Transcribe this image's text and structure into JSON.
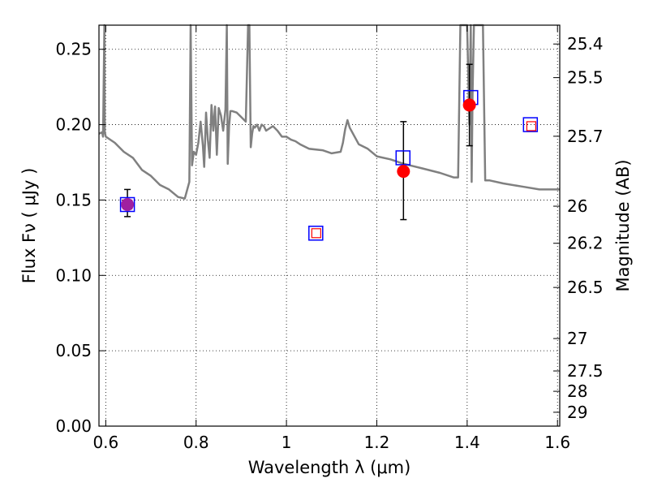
{
  "chart_data": {
    "type": "scatter",
    "xlabel": "Wavelength  λ (μm)",
    "ylabel": "Flux  Fν  ( μJy )",
    "y2label": "Magnitude (AB)",
    "xlim": [
      0.585,
      1.605
    ],
    "ylim": [
      0.0,
      0.266
    ],
    "grid": true,
    "x_ticks": [
      0.6,
      0.8,
      1.0,
      1.2,
      1.4,
      1.6
    ],
    "x_tick_labels": [
      "0.6",
      "0.8",
      "1",
      "1.2",
      "1.4",
      "1.6"
    ],
    "y_ticks": [
      0.0,
      0.05,
      0.1,
      0.15,
      0.2,
      0.25
    ],
    "y_tick_labels": [
      "0.00",
      "0.05",
      "0.10",
      "0.15",
      "0.20",
      "0.25"
    ],
    "y2_ticks": [
      {
        "mag": "25.4",
        "flux": 0.2535
      },
      {
        "mag": "25.5",
        "flux": 0.2312
      },
      {
        "mag": "25.7",
        "flux": 0.1923
      },
      {
        "mag": "26",
        "flux": 0.1459
      },
      {
        "mag": "26.2",
        "flux": 0.1213
      },
      {
        "mag": "26.5",
        "flux": 0.092
      },
      {
        "mag": "27",
        "flux": 0.0581
      },
      {
        "mag": "27.5",
        "flux": 0.0366
      },
      {
        "mag": "28",
        "flux": 0.0231
      },
      {
        "mag": "29",
        "flux": 0.0092
      }
    ],
    "series": [
      {
        "kind": "line",
        "color": "#808080",
        "x": [
          0.585,
          0.592,
          0.594,
          0.597,
          0.598,
          0.6,
          0.62,
          0.64,
          0.66,
          0.68,
          0.7,
          0.72,
          0.74,
          0.76,
          0.775,
          0.785,
          0.788,
          0.791,
          0.795,
          0.8,
          0.805,
          0.81,
          0.815,
          0.818,
          0.822,
          0.826,
          0.83,
          0.834,
          0.838,
          0.842,
          0.846,
          0.85,
          0.855,
          0.86,
          0.865,
          0.868,
          0.87,
          0.873,
          0.876,
          0.88,
          0.89,
          0.9,
          0.91,
          0.915,
          0.918,
          0.921,
          0.924,
          0.927,
          0.93,
          0.935,
          0.94,
          0.945,
          0.95,
          0.955,
          0.96,
          0.97,
          0.98,
          0.99,
          1.0,
          1.01,
          1.02,
          1.03,
          1.05,
          1.08,
          1.1,
          1.12,
          1.125,
          1.13,
          1.135,
          1.14,
          1.16,
          1.18,
          1.2,
          1.23,
          1.26,
          1.3,
          1.34,
          1.37,
          1.38,
          1.385,
          1.39,
          1.4,
          1.405,
          1.408,
          1.41,
          1.412,
          1.415,
          1.42,
          1.43,
          1.435,
          1.44,
          1.45,
          1.48,
          1.52,
          1.56,
          1.605
        ],
        "y": [
          0.194,
          0.195,
          0.192,
          0.266,
          0.195,
          0.192,
          0.188,
          0.182,
          0.178,
          0.17,
          0.166,
          0.16,
          0.157,
          0.152,
          0.151,
          0.162,
          0.266,
          0.173,
          0.182,
          0.18,
          0.188,
          0.202,
          0.186,
          0.172,
          0.208,
          0.19,
          0.178,
          0.213,
          0.196,
          0.212,
          0.18,
          0.211,
          0.206,
          0.196,
          0.21,
          0.266,
          0.174,
          0.199,
          0.209,
          0.209,
          0.208,
          0.205,
          0.202,
          0.266,
          0.266,
          0.185,
          0.194,
          0.199,
          0.198,
          0.2,
          0.196,
          0.2,
          0.199,
          0.196,
          0.197,
          0.199,
          0.196,
          0.192,
          0.192,
          0.19,
          0.189,
          0.187,
          0.184,
          0.183,
          0.181,
          0.182,
          0.188,
          0.197,
          0.203,
          0.198,
          0.187,
          0.184,
          0.179,
          0.177,
          0.174,
          0.171,
          0.168,
          0.165,
          0.165,
          0.266,
          0.266,
          0.266,
          0.2,
          0.266,
          0.162,
          0.22,
          0.266,
          0.266,
          0.266,
          0.266,
          0.163,
          0.163,
          0.161,
          0.159,
          0.157,
          0.157
        ]
      },
      {
        "kind": "open-square",
        "color": "#0000ff",
        "x": [
          0.648,
          1.065,
          1.258,
          1.408,
          1.54
        ],
        "y": [
          0.147,
          0.128,
          0.178,
          0.218,
          0.2
        ]
      },
      {
        "kind": "small-open-square",
        "color": "#ff0000",
        "x": [
          0.648,
          1.066,
          1.542
        ],
        "y": [
          0.147,
          0.128,
          0.199
        ]
      },
      {
        "kind": "filled-circle",
        "color": "#ff0000",
        "x": [
          0.648,
          1.259,
          1.405
        ],
        "y": [
          0.147,
          0.169,
          0.213
        ],
        "yerr_low": [
          0.139,
          0.137,
          0.186
        ],
        "yerr_high": [
          0.157,
          0.202,
          0.24
        ]
      }
    ],
    "overlap_color": "#a020a0"
  }
}
